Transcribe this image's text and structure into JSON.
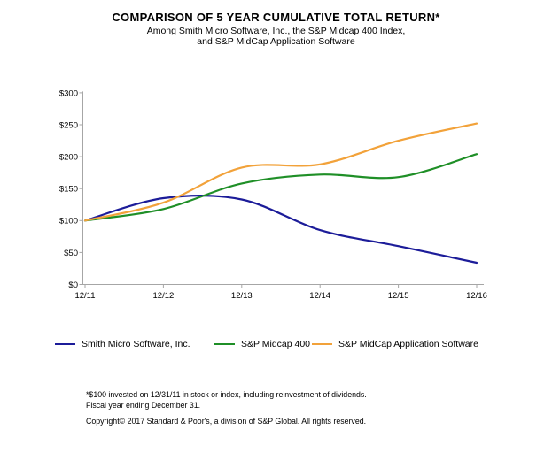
{
  "chart_data": {
    "type": "line",
    "title": "COMPARISON OF 5 YEAR CUMULATIVE TOTAL RETURN*",
    "subtitle": [
      "Among Smith Micro Software, Inc., the S&P Midcap 400 Index,",
      "and S&P MidCap Application Software"
    ],
    "categories": [
      "12/11",
      "12/12",
      "12/13",
      "12/14",
      "12/15",
      "12/16"
    ],
    "series": [
      {
        "name": "Smith Micro Software, Inc.",
        "color": "#1c1c99",
        "values": [
          100,
          135,
          133,
          85,
          60,
          34
        ]
      },
      {
        "name": "S&P Midcap 400",
        "color": "#1f8f27",
        "values": [
          100,
          118,
          158,
          172,
          168,
          204
        ]
      },
      {
        "name": "S&P MidCap Application Software",
        "color": "#f2a23a",
        "values": [
          100,
          128,
          183,
          188,
          225,
          252
        ]
      }
    ],
    "ylim": [
      0,
      300
    ],
    "y_tick_values": [
      0,
      50,
      100,
      150,
      200,
      250,
      300
    ],
    "y_tick_labels": [
      "$0",
      "$50",
      "$100",
      "$150",
      "$200",
      "$250",
      "$300"
    ],
    "grid": false,
    "legend_position": "bottom",
    "axis_color": "#a6a6a6",
    "line_smoothing": "catmull-rom"
  },
  "footnotes": {
    "invested": "*$100 invested on 12/31/11 in stock or index, including reinvestment of dividends.",
    "fiscal": "Fiscal year ending December 31.",
    "copyright": "Copyright© 2017 Standard & Poor's, a division of S&P Global. All rights reserved."
  }
}
